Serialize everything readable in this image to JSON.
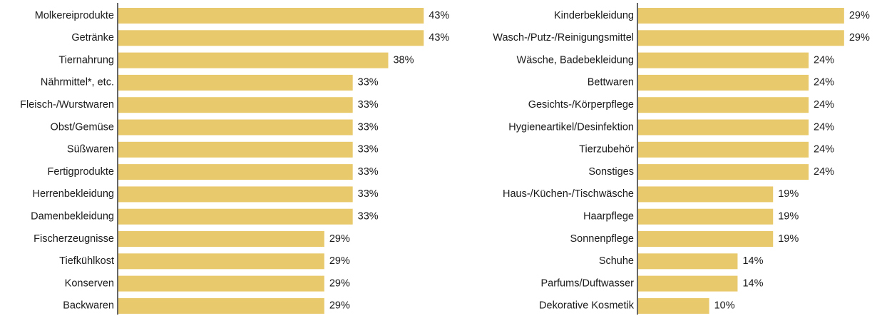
{
  "chart_data": [
    {
      "type": "barh",
      "categories": [
        "Molkereiprodukte",
        "Getränke",
        "Tiernahrung",
        "Nährmittel*, etc.",
        "Fleisch-/Wurstwaren",
        "Obst/Gemüse",
        "Süßwaren",
        "Fertigprodukte",
        "Herrenbekleidung",
        "Damenbekleidung",
        "Fischerzeugnisse",
        "Tiefkühlkost",
        "Konserven",
        "Backwaren"
      ],
      "values": [
        43,
        43,
        38,
        33,
        33,
        33,
        33,
        33,
        33,
        33,
        29,
        29,
        29,
        29
      ],
      "value_labels": [
        "43%",
        "43%",
        "38%",
        "33%",
        "33%",
        "33%",
        "33%",
        "33%",
        "33%",
        "33%",
        "29%",
        "29%",
        "29%",
        "29%"
      ],
      "color": "#e8c96c"
    },
    {
      "type": "barh",
      "categories": [
        "Kinderbekleidung",
        "Wasch-/Putz-/Reinigungsmittel",
        "Wäsche, Badebekleidung",
        "Bettwaren",
        "Gesichts-/Körperpflege",
        "Hygieneartikel/Desinfektion",
        "Tierzubehör",
        "Sonstiges",
        "Haus-/Küchen-/Tischwäsche",
        "Haarpflege",
        "Sonnenpflege",
        "Schuhe",
        "Parfums/Duftwasser",
        "Dekorative Kosmetik"
      ],
      "values": [
        29,
        29,
        24,
        24,
        24,
        24,
        24,
        24,
        19,
        19,
        19,
        14,
        14,
        10
      ],
      "value_labels": [
        "29%",
        "29%",
        "24%",
        "24%",
        "24%",
        "24%",
        "24%",
        "24%",
        "19%",
        "19%",
        "19%",
        "14%",
        "14%",
        "10%"
      ],
      "color": "#e8c96c"
    }
  ]
}
